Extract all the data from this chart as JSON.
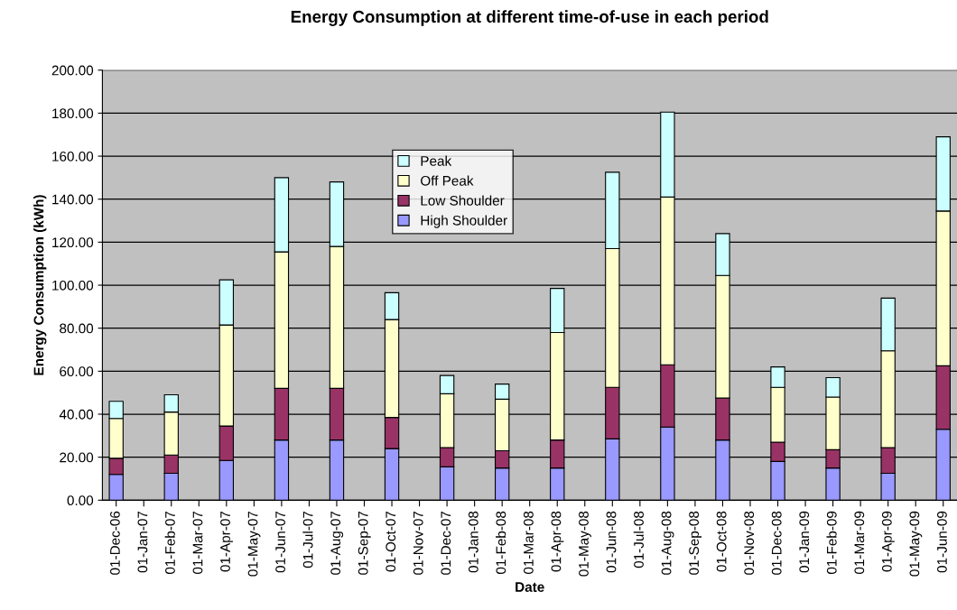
{
  "chart_data": {
    "type": "bar",
    "stacked": true,
    "title": "Energy Consumption at different time-of-use in each period",
    "xlabel": "Date",
    "ylabel": "Energy Consumption (kWh)",
    "categories": [
      "01-Dec-06",
      "01-Jan-07",
      "01-Feb-07",
      "01-Mar-07",
      "01-Apr-07",
      "01-May-07",
      "01-Jun-07",
      "01-Jul-07",
      "01-Aug-07",
      "01-Sep-07",
      "01-Oct-07",
      "01-Nov-07",
      "01-Dec-07",
      "01-Jan-08",
      "01-Feb-08",
      "01-Mar-08",
      "01-Apr-08",
      "01-May-08",
      "01-Jun-08",
      "01-Jul-08",
      "01-Aug-08",
      "01-Sep-08",
      "01-Oct-08",
      "01-Nov-08",
      "01-Dec-08",
      "01-Jan-09",
      "01-Feb-09",
      "01-Mar-09",
      "01-Apr-09",
      "01-May-09",
      "01-Jun-09"
    ],
    "series": [
      {
        "name": "High Shoulder",
        "color": "#9999ff",
        "values": [
          12,
          null,
          12.5,
          null,
          18.5,
          null,
          28,
          null,
          28,
          null,
          24,
          null,
          15.5,
          null,
          15,
          null,
          15,
          null,
          28.5,
          null,
          34,
          null,
          28,
          null,
          18,
          null,
          15,
          null,
          12.5,
          null,
          33
        ]
      },
      {
        "name": "Low Shoulder",
        "color": "#993366",
        "values": [
          7.5,
          null,
          8.5,
          null,
          16,
          null,
          24,
          null,
          24,
          null,
          14.5,
          null,
          9,
          null,
          8,
          null,
          13,
          null,
          24,
          null,
          29,
          null,
          19.5,
          null,
          9,
          null,
          8.5,
          null,
          12,
          null,
          29.5
        ]
      },
      {
        "name": "Off Peak",
        "color": "#ffffcc",
        "values": [
          18.5,
          null,
          20,
          null,
          47,
          null,
          63.5,
          null,
          66,
          null,
          45.5,
          null,
          25,
          null,
          24,
          null,
          50,
          null,
          64.5,
          null,
          78,
          null,
          57,
          null,
          25.5,
          null,
          24.5,
          null,
          45,
          null,
          72
        ]
      },
      {
        "name": "Peak",
        "color": "#ccffff",
        "values": [
          8,
          null,
          8,
          null,
          21,
          null,
          34.5,
          null,
          30,
          null,
          12.5,
          null,
          8.5,
          null,
          7,
          null,
          20.5,
          null,
          35.5,
          null,
          39.5,
          null,
          19.5,
          null,
          9.5,
          null,
          9,
          null,
          24.5,
          null,
          34.5
        ]
      }
    ],
    "ylim": [
      0,
      200
    ],
    "yticks": [
      {
        "value": 0,
        "label": "0.00"
      },
      {
        "value": 20,
        "label": "20.00"
      },
      {
        "value": 40,
        "label": "40.00"
      },
      {
        "value": 60,
        "label": "60.00"
      },
      {
        "value": 80,
        "label": "80.00"
      },
      {
        "value": 100,
        "label": "100.00"
      },
      {
        "value": 120,
        "label": "120.00"
      },
      {
        "value": 140,
        "label": "140.00"
      },
      {
        "value": 160,
        "label": "160.00"
      },
      {
        "value": 180,
        "label": "180.00"
      },
      {
        "value": 200,
        "label": "200.00"
      }
    ],
    "grid": "y",
    "legend": "top"
  }
}
